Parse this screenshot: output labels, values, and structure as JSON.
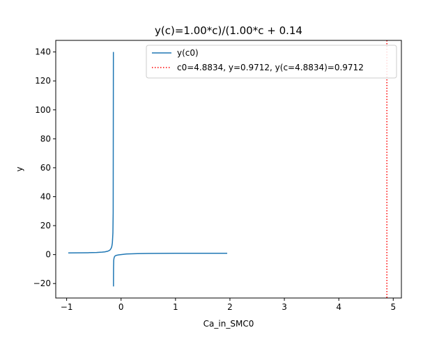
{
  "chart_data": {
    "type": "line",
    "title": "y(c)=1.00*c)/(1.00*c + 0.14",
    "xlabel": "Ca_in_SMC0",
    "ylabel": "y",
    "xlim": [
      -1.2,
      5.15
    ],
    "ylim": [
      -30,
      148
    ],
    "xticks": [
      -1,
      0,
      1,
      2,
      3,
      4,
      5
    ],
    "yticks": [
      -20,
      0,
      20,
      40,
      60,
      80,
      100,
      120,
      140
    ],
    "grid": false,
    "legend_placement": "top-right",
    "series": [
      {
        "name": "y(c0)",
        "color": "#1f77b4",
        "style": "solid",
        "function": "y = c/(c + 0.14)",
        "segments": [
          {
            "x": [
              -0.97,
              -0.8,
              -0.6,
              -0.45,
              -0.35,
              -0.3,
              -0.25,
              -0.22,
              -0.2,
              -0.18,
              -0.17,
              -0.16,
              -0.15,
              -0.145,
              -0.141
            ],
            "y": [
              1.17,
              1.21,
              1.3,
              1.45,
              1.67,
              1.88,
              2.27,
              2.75,
              3.33,
              4.5,
              5.67,
              8.0,
              15.0,
              29.0,
              140.0
            ]
          },
          {
            "x": [
              -0.1395,
              -0.139,
              -0.138,
              -0.135,
              -0.13,
              -0.12,
              -0.11,
              -0.1,
              -0.08,
              -0.05,
              0.0,
              0.1,
              0.3,
              0.5,
              1.0,
              1.5,
              1.95
            ],
            "y": [
              -22.0,
              -16.0,
              -9.0,
              -4.0,
              -2.5,
              -1.4,
              -0.95,
              -0.71,
              -0.45,
              -0.25,
              0.0,
              0.42,
              0.68,
              0.78,
              0.88,
              0.91,
              0.93
            ]
          }
        ]
      },
      {
        "name": "c0=4.8834, y=0.9712, y(c=4.8834)=0.9712",
        "color": "#ff0000",
        "style": "dotted",
        "vline_x": 4.8834
      }
    ]
  }
}
